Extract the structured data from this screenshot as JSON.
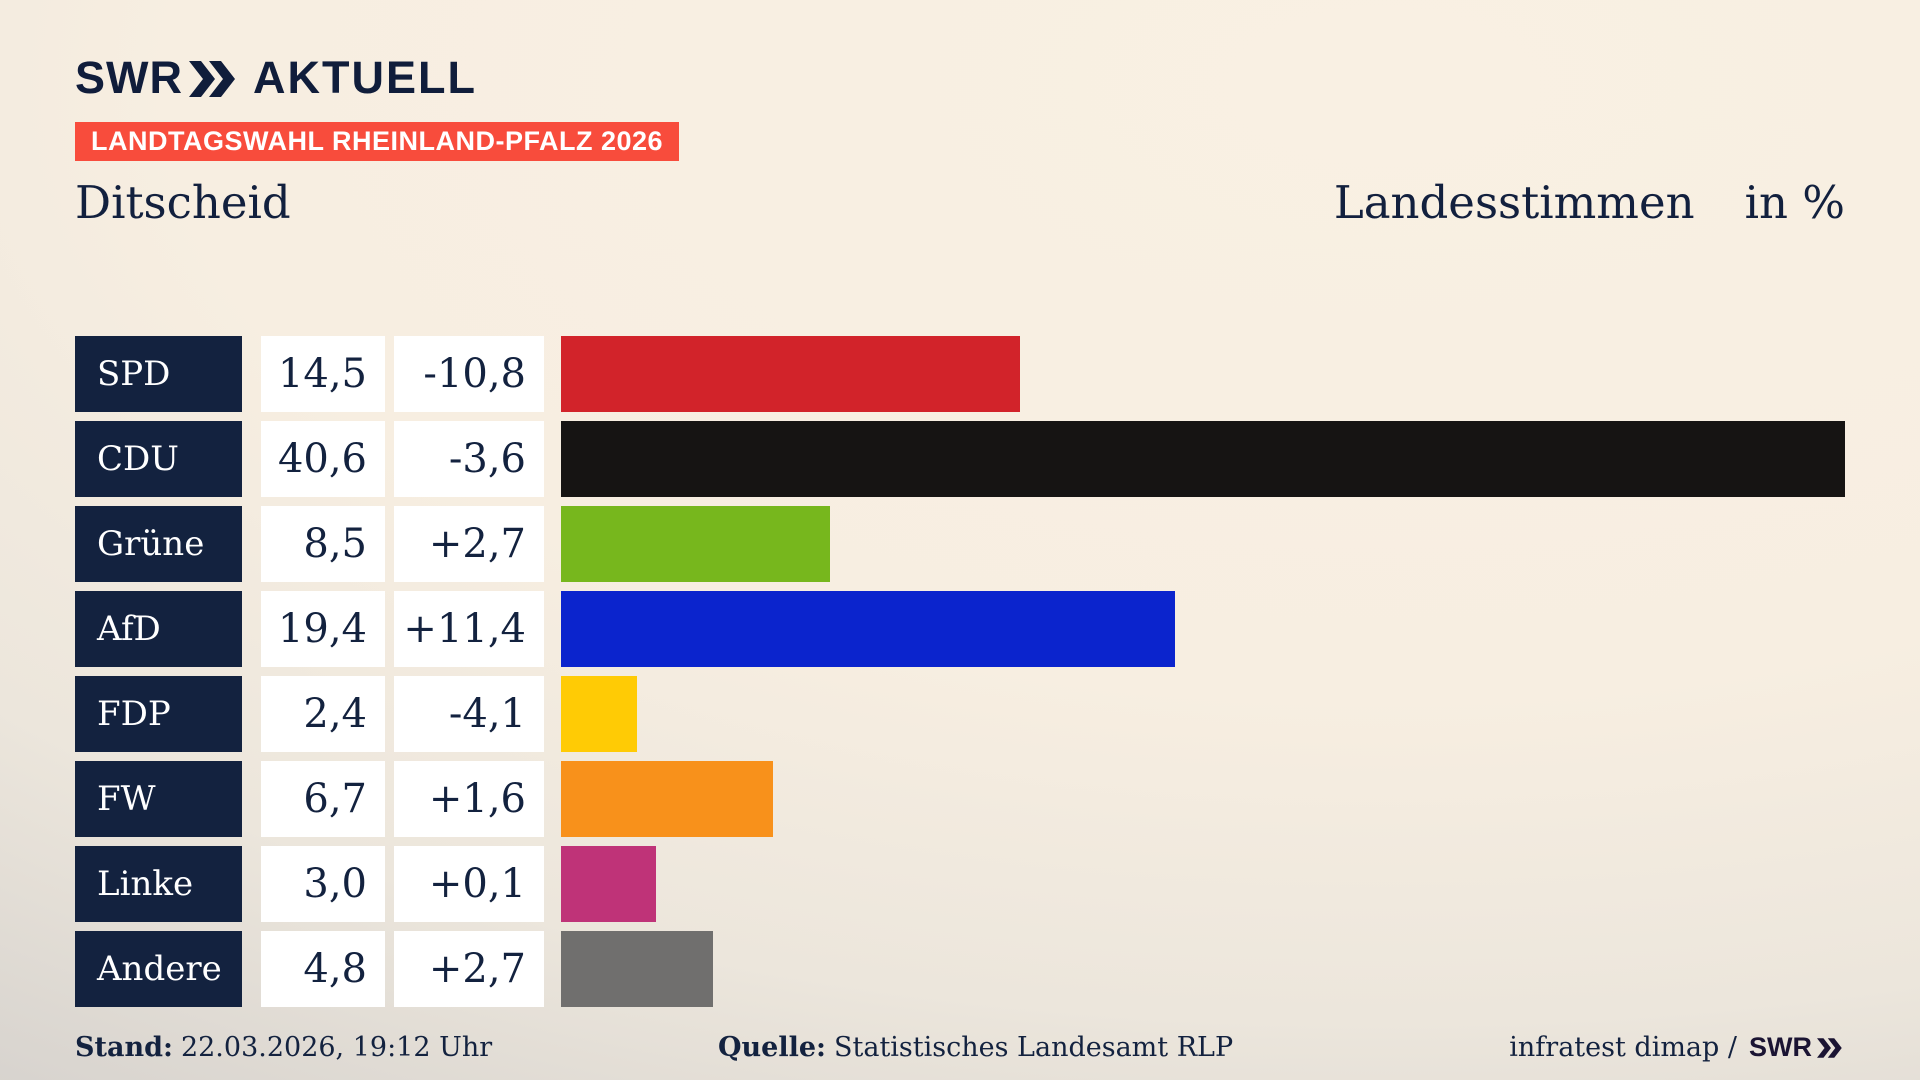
{
  "header": {
    "brand": {
      "swr": "SWR",
      "aktuell": "AKTUELL"
    },
    "banner": "LANDTAGSWAHL RHEINLAND-PFALZ 2026"
  },
  "titles": {
    "left": "Ditscheid",
    "right": "Landesstimmen",
    "unit": "in %"
  },
  "chart_data": {
    "type": "bar",
    "orientation": "horizontal",
    "title": "Ditscheid",
    "measure_label": "Landesstimmen",
    "unit": "in %",
    "xlim": [
      0,
      40.6
    ],
    "grid": false,
    "legend": false,
    "parties": [
      {
        "name": "SPD",
        "value": 14.5,
        "value_label": "14,5",
        "change": -10.8,
        "change_label": "-10,8",
        "color": "#d2232a"
      },
      {
        "name": "CDU",
        "value": 40.6,
        "value_label": "40,6",
        "change": -3.6,
        "change_label": "-3,6",
        "color": "#161413"
      },
      {
        "name": "Grüne",
        "value": 8.5,
        "value_label": "8,5",
        "change": 2.7,
        "change_label": "+2,7",
        "color": "#77b71d"
      },
      {
        "name": "AfD",
        "value": 19.4,
        "value_label": "19,4",
        "change": 11.4,
        "change_label": "+11,4",
        "color": "#0b24cd"
      },
      {
        "name": "FDP",
        "value": 2.4,
        "value_label": "2,4",
        "change": -4.1,
        "change_label": "-4,1",
        "color": "#ffcb05"
      },
      {
        "name": "FW",
        "value": 6.7,
        "value_label": "6,7",
        "change": 1.6,
        "change_label": "+1,6",
        "color": "#f8911b"
      },
      {
        "name": "Linke",
        "value": 3.0,
        "value_label": "3,0",
        "change": 0.1,
        "change_label": "+0,1",
        "color": "#bf3378"
      },
      {
        "name": "Andere",
        "value": 4.8,
        "value_label": "4,8",
        "change": 2.7,
        "change_label": "+2,7",
        "color": "#706f6e"
      }
    ],
    "colors": {
      "background_cream": "#f7eee1",
      "background_gray": "#bcbab8",
      "navy": "#13223f",
      "banner_red": "#f84c3c",
      "box_white": "#ffffff"
    }
  },
  "footer": {
    "stand_label": "Stand:",
    "stand_value": "22.03.2026, 19:12 Uhr",
    "quelle_label": "Quelle:",
    "quelle_value": "Statistisches Landesamt RLP",
    "credit": "infratest dimap /",
    "credit_brand": "SWR"
  }
}
